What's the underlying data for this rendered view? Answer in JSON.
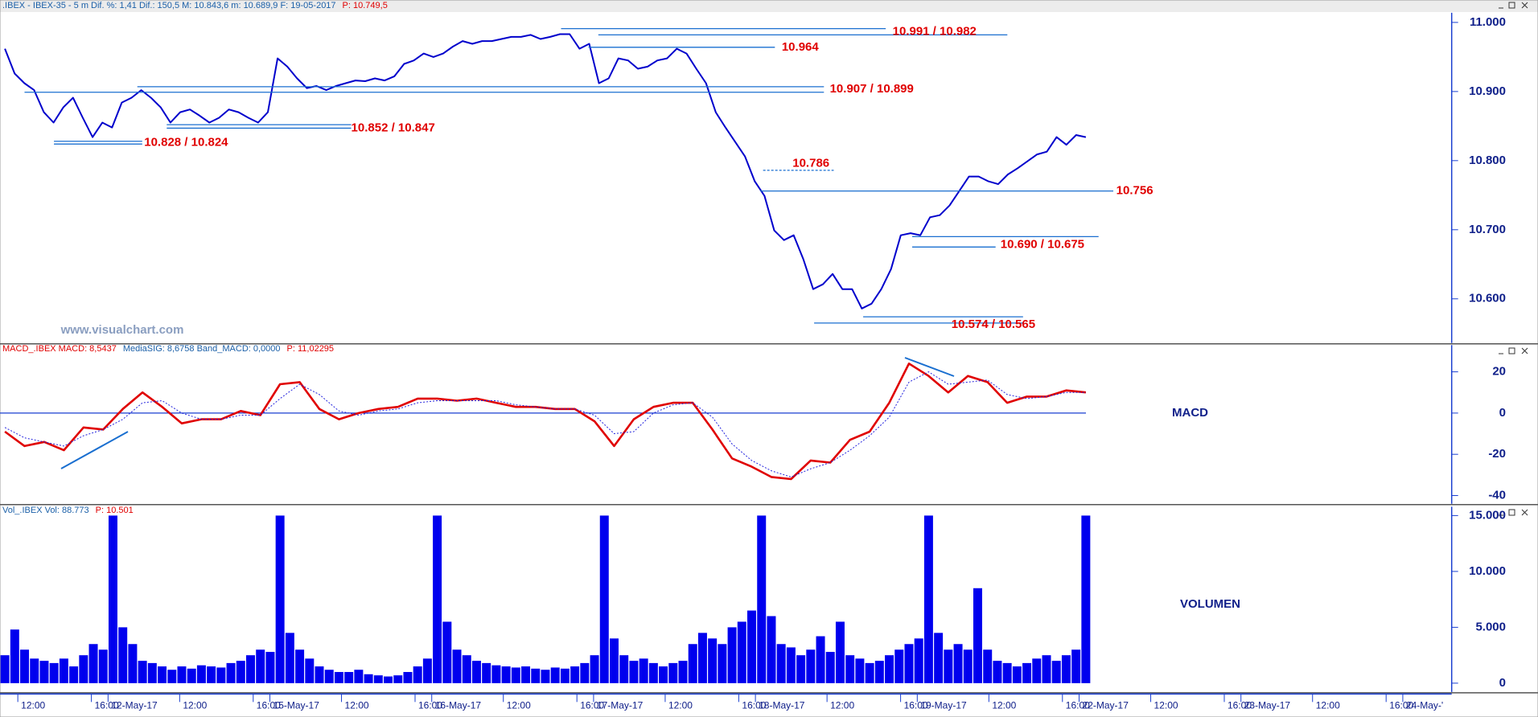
{
  "chart_data": [
    {
      "type": "line",
      "header": [
        {
          "text": ".IBEX - IBEX-35 -  5 m  Dif. %: 1,41  Dif.: 150,5  M: 10.843,6  m: 10.689,9  F: 19-05-2017",
          "color": "#1a5fa8"
        },
        {
          "text": "P: 10.749,5",
          "color": "#e00000"
        }
      ],
      "watermark": "www.visualchart.com",
      "color": "#0000cc",
      "values": [
        10962,
        10926,
        10912,
        10902,
        10870,
        10855,
        10877,
        10891,
        10862,
        10834,
        10855,
        10848,
        10884,
        10891,
        10902,
        10891,
        10877,
        10855,
        10870,
        10874,
        10865,
        10855,
        10862,
        10874,
        10870,
        10862,
        10855,
        10870,
        10948,
        10936,
        10919,
        10905,
        10908,
        10902,
        10908,
        10912,
        10916,
        10915,
        10919,
        10916,
        10922,
        10940,
        10945,
        10955,
        10950,
        10955,
        10965,
        10973,
        10969,
        10973,
        10973,
        10976,
        10979,
        10979,
        10982,
        10976,
        10979,
        10983,
        10983,
        10962,
        10969,
        10912,
        10919,
        10948,
        10945,
        10933,
        10936,
        10945,
        10948,
        10962,
        10955,
        10933,
        10912,
        10870,
        10848,
        10827,
        10806,
        10770,
        10749,
        10699,
        10685,
        10692,
        10657,
        10614,
        10621,
        10636,
        10614,
        10614,
        10586,
        10593,
        10614,
        10643,
        10692,
        10695,
        10692,
        10718,
        10721,
        10735,
        10756,
        10777,
        10777,
        10770,
        10766,
        10780,
        10789,
        10799,
        10809,
        10813,
        10834,
        10823,
        10837,
        10834
      ],
      "ylim": [
        10536,
        11014
      ],
      "yticks": [
        {
          "value": 10600,
          "label": "10.600"
        },
        {
          "value": 10700,
          "label": "10.700"
        },
        {
          "value": 10800,
          "label": "10.800"
        },
        {
          "value": 10900,
          "label": "10.900"
        },
        {
          "value": 11000,
          "label": "11.000"
        }
      ],
      "annotations": [
        {
          "label": "10.991 / 10.982",
          "values": [
            10991,
            10982
          ],
          "color": "#1a6fd0"
        },
        {
          "label": "10.964",
          "values": [
            10964
          ],
          "color": "#1a6fd0"
        },
        {
          "label": "10.907 / 10.899",
          "values": [
            10907,
            10899
          ],
          "color": "#1a6fd0"
        },
        {
          "label": "10.852 / 10.847",
          "values": [
            10852,
            10847
          ],
          "color": "#1a6fd0"
        },
        {
          "label": "10.828 / 10.824",
          "values": [
            10828,
            10824
          ],
          "color": "#1a6fd0"
        },
        {
          "label": "10.786",
          "values": [
            10786
          ],
          "color": "#1a6fd0",
          "dashed": true
        },
        {
          "label": "10.756",
          "values": [
            10756
          ],
          "color": "#1a6fd0"
        },
        {
          "label": "10.690 / 10.675",
          "values": [
            10690,
            10675
          ],
          "color": "#1a6fd0"
        },
        {
          "label": "10.574 / 10.565",
          "values": [
            10574,
            10565
          ],
          "color": "#1a6fd0"
        }
      ],
      "annotation_color": "#e00000"
    },
    {
      "type": "line",
      "header": [
        {
          "text": "MACD_.IBEX  MACD: 8,5437",
          "color": "#e00000"
        },
        {
          "text": "MediaSIG: 8,6758  Band_MACD: 0,0000",
          "color": "#1a5fa8"
        },
        {
          "text": "P: 11,02295",
          "color": "#e00000"
        }
      ],
      "label": "MACD",
      "series": [
        {
          "color": "#e00000",
          "values": [
            -9,
            -16,
            -14,
            -18,
            -7,
            -8,
            2,
            10,
            3,
            -5,
            -3,
            -3,
            1,
            -1,
            14,
            15,
            2,
            -3,
            0,
            2,
            3,
            7,
            7,
            6,
            7,
            5,
            3,
            3,
            2,
            2,
            -4,
            -16,
            -3,
            3,
            5,
            5,
            -8,
            -22,
            -26,
            -31,
            -32,
            -23,
            -24,
            -13,
            -9,
            5,
            24,
            18,
            10,
            18,
            15,
            5,
            8,
            8,
            11,
            10
          ]
        },
        {
          "color": "#2222dd",
          "dashed": true,
          "values": [
            -7,
            -12,
            -14,
            -16,
            -11,
            -8,
            -3,
            5,
            6,
            0,
            -3,
            -3,
            -1,
            -1,
            7,
            14,
            9,
            1,
            -1,
            1,
            2,
            5,
            6,
            6,
            6,
            6,
            4,
            3,
            2,
            2,
            -1,
            -10,
            -9,
            0,
            4,
            5,
            -2,
            -15,
            -23,
            -28,
            -31,
            -27,
            -24,
            -18,
            -11,
            -2,
            15,
            20,
            14,
            15,
            16,
            9,
            7,
            8,
            10,
            10
          ]
        }
      ],
      "hlines": [
        0
      ],
      "ylim": [
        -44,
        33
      ],
      "yticks": [
        -40,
        -20,
        0,
        20
      ]
    },
    {
      "type": "bar",
      "header": [
        {
          "text": "Vol_.IBEX  Vol: 88.773",
          "color": "#1a5fa8"
        },
        {
          "text": "P: 10.501",
          "color": "#e00000"
        }
      ],
      "label": "VOLUMEN",
      "color": "#0000ee",
      "values": [
        2500,
        4800,
        3000,
        2200,
        2000,
        1800,
        2200,
        1500,
        2500,
        3500,
        3000,
        15000,
        5000,
        3500,
        2000,
        1800,
        1500,
        1200,
        1500,
        1300,
        1600,
        1500,
        1400,
        1800,
        2000,
        2500,
        3000,
        2800,
        15000,
        4500,
        3000,
        2200,
        1500,
        1200,
        1000,
        1000,
        1200,
        800,
        700,
        600,
        700,
        1000,
        1500,
        2200,
        15000,
        5500,
        3000,
        2500,
        2000,
        1800,
        1600,
        1500,
        1400,
        1500,
        1300,
        1200,
        1400,
        1300,
        1500,
        1800,
        2500,
        15000,
        4000,
        2500,
        2000,
        2200,
        1800,
        1500,
        1800,
        2000,
        3500,
        4500,
        4000,
        3500,
        5000,
        5500,
        6500,
        15000,
        6000,
        3500,
        3200,
        2500,
        3000,
        4200,
        2800,
        5500,
        2500,
        2200,
        1800,
        2000,
        2500,
        3000,
        3500,
        4000,
        15000,
        4500,
        3000,
        3500,
        3000,
        8500,
        3000,
        2000,
        1800,
        1500,
        1800,
        2200,
        2500,
        2000,
        2500,
        3000,
        15000
      ],
      "ylim": [
        -790,
        15790
      ],
      "yticks": [
        0,
        {
          "value": 5000,
          "label": "5.000"
        },
        {
          "value": 10000,
          "label": "10.000"
        },
        {
          "value": 15000,
          "label": "15.000"
        }
      ]
    }
  ],
  "time_axis": {
    "labels": [
      "12:00",
      "16:00",
      "12-May-17",
      "12:00",
      "16:00",
      "15-May-17",
      "12:00",
      "16:00",
      "16-May-17",
      "12:00",
      "16:00",
      "17-May-17",
      "12:00",
      "16:00",
      "18-May-17",
      "12:00",
      "16:00",
      "19-May-17",
      "12:00",
      "16:00",
      "22-May-17",
      "12:00",
      "16:00",
      "23-May-17",
      "12:00",
      "16:00",
      "24-May-'"
    ]
  }
}
